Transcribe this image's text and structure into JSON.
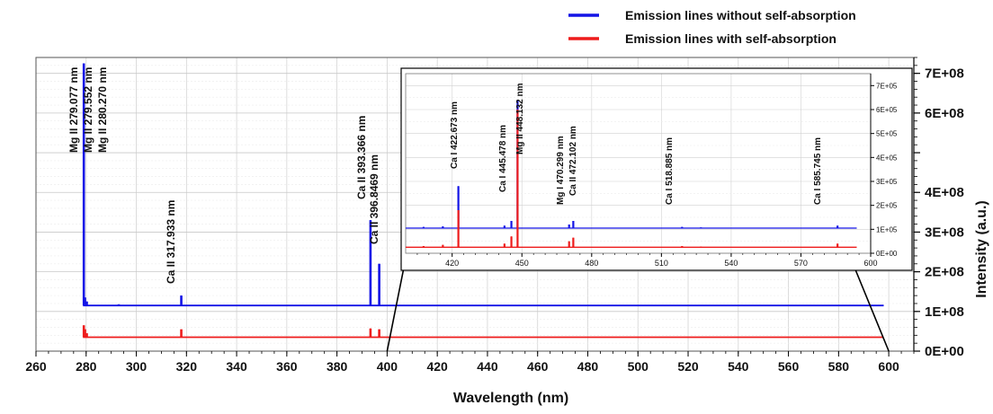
{
  "legend": {
    "placement": "top-right",
    "items": [
      {
        "label": "Emission lines without self-absorption",
        "color": "#1414e6"
      },
      {
        "label": "Emission lines with self-absorption",
        "color": "#ee1c1c"
      }
    ]
  },
  "colors": {
    "blue": "#1414e6",
    "red": "#ee1c1c",
    "inset_border": "#000000"
  },
  "chart_data": [
    {
      "type": "line",
      "panel": "main",
      "xlabel": "Wavelength (nm)",
      "ylabel": "Intensity (a.u.)",
      "xlim": [
        260,
        610
      ],
      "ylim": [
        0,
        740000000.0
      ],
      "x_ticks": [
        260,
        280,
        300,
        320,
        340,
        360,
        380,
        400,
        420,
        440,
        460,
        480,
        500,
        520,
        540,
        560,
        580,
        600
      ],
      "x_tick_labels": [
        "260",
        "280",
        "300",
        "320",
        "340",
        "360",
        "380",
        "400",
        "420",
        "440",
        "460",
        "480",
        "500",
        "520",
        "540",
        "560",
        "580",
        "600"
      ],
      "y_ticks": [
        0,
        100000000.0,
        200000000.0,
        300000000.0,
        400000000.0,
        500000000.0,
        600000000.0,
        700000000.0
      ],
      "y_tick_labels": [
        "0E+00",
        "1E+08",
        "2E+08",
        "3E+08",
        "4E+08",
        "",
        "6E+08",
        "7E+08"
      ],
      "grid": true,
      "series": [
        {
          "name": "Emission lines without self-absorption",
          "color": "#1414e6",
          "baseline": 115000000.0,
          "x_range": [
            279,
            598
          ],
          "peaks": [
            {
              "x": 279.077,
              "y": 725000000.0
            },
            {
              "x": 279.552,
              "y": 135000000.0
            },
            {
              "x": 280.27,
              "y": 125000000.0
            },
            {
              "x": 293.0,
              "y": 118000000.0
            },
            {
              "x": 317.933,
              "y": 140000000.0
            },
            {
              "x": 393.366,
              "y": 330000000.0
            },
            {
              "x": 396.847,
              "y": 220000000.0
            }
          ]
        },
        {
          "name": "Emission lines with self-absorption",
          "color": "#ee1c1c",
          "baseline": 35000000.0,
          "x_range": [
            279,
            598
          ],
          "peaks": [
            {
              "x": 279.077,
              "y": 65000000.0
            },
            {
              "x": 279.552,
              "y": 55000000.0
            },
            {
              "x": 280.27,
              "y": 45000000.0
            },
            {
              "x": 317.933,
              "y": 55000000.0
            },
            {
              "x": 393.366,
              "y": 57000000.0
            },
            {
              "x": 396.847,
              "y": 55000000.0
            }
          ]
        }
      ],
      "annotations": [
        {
          "text": "Mg II 279.077 nm",
          "x": 279.077
        },
        {
          "text": "Mg II 279.552 nm",
          "x": 279.552
        },
        {
          "text": "Mg II 280.270 nm",
          "x": 280.27
        },
        {
          "text": "Ca II 317.933 nm",
          "x": 317.933
        },
        {
          "text": "Ca II 393.366 nm",
          "x": 393.366
        },
        {
          "text": "Ca II 396.8469 nm",
          "x": 396.847
        }
      ]
    },
    {
      "type": "line",
      "panel": "inset",
      "xlim": [
        400,
        600
      ],
      "ylim": [
        0,
        750000.0
      ],
      "x_ticks": [
        420,
        450,
        480,
        510,
        540,
        570,
        600
      ],
      "x_tick_labels": [
        "420",
        "450",
        "480",
        "510",
        "540",
        "570",
        "600"
      ],
      "y_ticks": [
        0,
        100000.0,
        200000.0,
        300000.0,
        400000.0,
        500000.0,
        600000.0,
        700000.0
      ],
      "y_tick_labels": [
        "0E+00",
        "1E+05",
        "2E+05",
        "3E+05",
        "4E+05",
        "5E+05",
        "6E+05",
        "7E+05"
      ],
      "grid": true,
      "series": [
        {
          "name": "Emission lines without self-absorption",
          "color": "#1414e6",
          "baseline": 105000.0,
          "x_range": [
            400,
            594
          ],
          "peaks": [
            {
              "x": 407.7,
              "y": 110000.0
            },
            {
              "x": 416.0,
              "y": 112000.0
            },
            {
              "x": 422.673,
              "y": 280000.0
            },
            {
              "x": 442.5,
              "y": 115000.0
            },
            {
              "x": 445.478,
              "y": 135000.0
            },
            {
              "x": 448.132,
              "y": 640000.0
            },
            {
              "x": 470.299,
              "y": 120000.0
            },
            {
              "x": 472.102,
              "y": 135000.0
            },
            {
              "x": 518.885,
              "y": 110000.0
            },
            {
              "x": 527.0,
              "y": 108000.0
            },
            {
              "x": 585.745,
              "y": 115000.0
            }
          ]
        },
        {
          "name": "Emission lines with self-absorption",
          "color": "#ee1c1c",
          "baseline": 25000.0,
          "x_range": [
            400,
            594
          ],
          "peaks": [
            {
              "x": 407.7,
              "y": 30000.0
            },
            {
              "x": 416.0,
              "y": 35000.0
            },
            {
              "x": 422.673,
              "y": 180000.0
            },
            {
              "x": 442.5,
              "y": 40000.0
            },
            {
              "x": 445.478,
              "y": 70000.0
            },
            {
              "x": 448.132,
              "y": 600000.0
            },
            {
              "x": 470.299,
              "y": 50000.0
            },
            {
              "x": 472.102,
              "y": 65000.0
            },
            {
              "x": 518.885,
              "y": 30000.0
            },
            {
              "x": 527.0,
              "y": 28000.0
            },
            {
              "x": 585.745,
              "y": 40000.0
            }
          ]
        }
      ],
      "annotations": [
        {
          "text": "Ca I 422.673 nm",
          "x": 422.673
        },
        {
          "text": "Ca I 445.478 nm",
          "x": 445.478
        },
        {
          "text": "Mg II 448.132 nm",
          "x": 448.132
        },
        {
          "text": "Mg I 470.299 nm",
          "x": 470.299
        },
        {
          "text": "Ca II 472.102 nm",
          "x": 472.102
        },
        {
          "text": "Ca I 518.885 nm",
          "x": 518.885
        },
        {
          "text": "Ca I 585.745 nm",
          "x": 585.745
        }
      ]
    }
  ]
}
